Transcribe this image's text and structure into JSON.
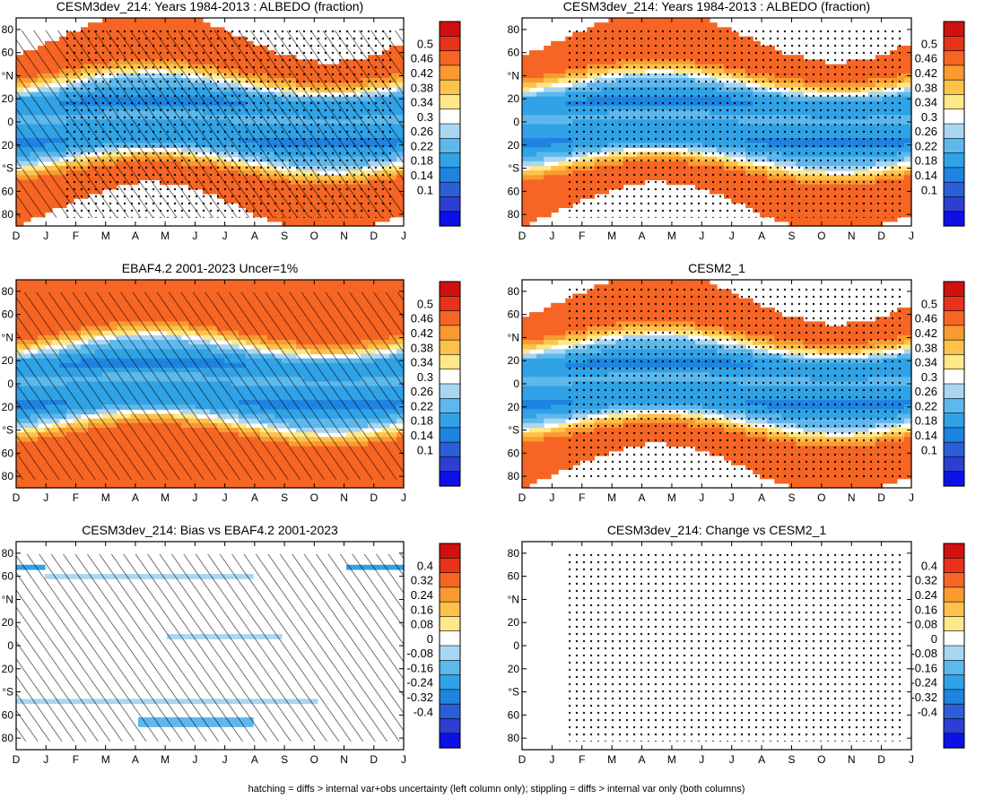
{
  "footnote": "hatching = diffs > internal var+obs uncertainty (left column only); stippling = diffs > internal var only (both columns)",
  "colorbars": {
    "albedo": {
      "labels": [
        "0.5",
        "0.46",
        "0.42",
        "0.38",
        "0.34",
        "0.3",
        "0.26",
        "0.22",
        "0.18",
        "0.14",
        "0.1"
      ],
      "colors": [
        "#d11010",
        "#e8321a",
        "#f66524",
        "#fb9a30",
        "#fec24a",
        "#fee88a",
        "#ffffff",
        "#a9d6f2",
        "#5db8ec",
        "#30a2e6",
        "#1f83e0",
        "#2a5fd8",
        "#2d3fd2",
        "#0d10e6"
      ]
    },
    "diff": {
      "labels": [
        "0.4",
        "0.32",
        "0.24",
        "0.16",
        "0.08",
        "0",
        "-0.08",
        "-0.16",
        "-0.24",
        "-0.32",
        "-0.4"
      ],
      "colors": [
        "#d11010",
        "#e8321a",
        "#f66524",
        "#fb9a30",
        "#fec24a",
        "#fee88a",
        "#ffffff",
        "#a9d6f2",
        "#5db8ec",
        "#30a2e6",
        "#1f83e0",
        "#2a5fd8",
        "#2d3fd2",
        "#0d10e6"
      ]
    }
  },
  "chart_data": [
    {
      "id": "p1",
      "type": "heatmap",
      "title": "CESM3dev_214: Years 1984-2013 : ALBEDO (fraction)",
      "x_ticks": [
        "D",
        "J",
        "F",
        "M",
        "A",
        "M",
        "J",
        "J",
        "A",
        "S",
        "O",
        "N",
        "D",
        "J"
      ],
      "y_ticks": [
        "80",
        "60",
        "°N",
        "20",
        "0",
        "20",
        "°S",
        "60",
        "80"
      ],
      "y_range": [
        -90,
        90
      ],
      "colorbar": "albedo",
      "field": "albedo",
      "overlay": "hatch+dots",
      "polar_night_mask": true
    },
    {
      "id": "p2",
      "type": "heatmap",
      "title": "CESM3dev_214: Years 1984-2013 : ALBEDO (fraction)",
      "x_ticks": [
        "D",
        "J",
        "F",
        "M",
        "A",
        "M",
        "J",
        "J",
        "A",
        "S",
        "O",
        "N",
        "D",
        "J"
      ],
      "y_ticks": [
        "80",
        "60",
        "°N",
        "20",
        "0",
        "20",
        "°S",
        "60",
        "80"
      ],
      "y_range": [
        -90,
        90
      ],
      "colorbar": "albedo",
      "field": "albedo",
      "overlay": "dots",
      "polar_night_mask": true
    },
    {
      "id": "p3",
      "type": "heatmap",
      "title": "EBAF4.2 2001-2023 Uncer=1%",
      "x_ticks": [
        "D",
        "J",
        "F",
        "M",
        "A",
        "M",
        "J",
        "J",
        "A",
        "S",
        "O",
        "N",
        "D",
        "J"
      ],
      "y_ticks": [
        "80",
        "60",
        "°N",
        "20",
        "0",
        "20",
        "°S",
        "60",
        "80"
      ],
      "y_range": [
        -90,
        90
      ],
      "colorbar": "albedo",
      "field": "albedo",
      "overlay": "hatch",
      "polar_night_mask": false
    },
    {
      "id": "p4",
      "type": "heatmap",
      "title": "CESM2_1",
      "x_ticks": [
        "D",
        "J",
        "F",
        "M",
        "A",
        "M",
        "J",
        "J",
        "A",
        "S",
        "O",
        "N",
        "D",
        "J"
      ],
      "y_ticks": [
        "80",
        "60",
        "°N",
        "20",
        "0",
        "20",
        "°S",
        "60",
        "80"
      ],
      "y_range": [
        -90,
        90
      ],
      "colorbar": "albedo",
      "field": "albedo",
      "overlay": "dots",
      "polar_night_mask": true
    },
    {
      "id": "p5",
      "type": "heatmap",
      "title": "CESM3dev_214: Bias vs EBAF4.2 2001-2023",
      "x_ticks": [
        "D",
        "J",
        "F",
        "M",
        "A",
        "M",
        "J",
        "J",
        "A",
        "S",
        "O",
        "N",
        "D",
        "J"
      ],
      "y_ticks": [
        "80",
        "60",
        "°N",
        "20",
        "0",
        "20",
        "°S",
        "60",
        "80"
      ],
      "y_range": [
        -90,
        90
      ],
      "colorbar": "diff",
      "field": "bias",
      "overlay": "hatch",
      "polar_night_mask": false
    },
    {
      "id": "p6",
      "type": "heatmap",
      "title": "CESM3dev_214: Change vs CESM2_1",
      "x_ticks": [
        "D",
        "J",
        "F",
        "M",
        "A",
        "M",
        "J",
        "J",
        "A",
        "S",
        "O",
        "N",
        "D",
        "J"
      ],
      "y_ticks": [
        "80",
        "60",
        "°N",
        "20",
        "0",
        "20",
        "°S",
        "60",
        "80"
      ],
      "y_range": [
        -90,
        90
      ],
      "colorbar": "diff",
      "field": "change",
      "overlay": "dots",
      "polar_night_mask": false
    }
  ]
}
